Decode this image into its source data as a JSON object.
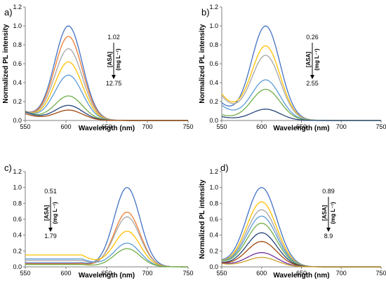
{
  "chart_data": [
    {
      "type": "line",
      "panel_label": "a)",
      "xlabel": "Wavelength (nm)",
      "ylabel": "Normalized PL intensity",
      "xlim": [
        550,
        750
      ],
      "ylim": [
        0,
        1.2
      ],
      "xticks": [
        "550",
        "600",
        "650",
        "700",
        "750"
      ],
      "yticks": [
        "0.0",
        "0.2",
        "0.4",
        "0.6",
        "0.8",
        "1.0",
        "1.2"
      ],
      "grid": false,
      "legend": "none",
      "annotation": {
        "top": "1.02",
        "bottom": "12.75",
        "label_main": "[ASA]",
        "label_unit": "(mg L⁻¹)"
      },
      "peak_x": 603,
      "width": 17,
      "baseline": 0.05,
      "series": [
        {
          "color": "#4472C4",
          "peak": 1.0,
          "wing": 0.1
        },
        {
          "color": "#ED7D31",
          "peak": 0.89,
          "wing": 0.1
        },
        {
          "color": "#A5A5A5",
          "peak": 0.76,
          "wing": 0.1
        },
        {
          "color": "#FFC000",
          "peak": 0.62,
          "wing": 0.1
        },
        {
          "color": "#5B9BD5",
          "peak": 0.48,
          "wing": 0.1
        },
        {
          "color": "#70AD47",
          "peak": 0.26,
          "wing": 0.1
        },
        {
          "color": "#264478",
          "peak": 0.16,
          "wing": 0.1
        },
        {
          "color": "#9E480E",
          "peak": 0.11,
          "wing": 0.08
        }
      ]
    },
    {
      "type": "line",
      "panel_label": "b)",
      "xlabel": "Wavelength (nm)",
      "ylabel": "Normalized PL intensity",
      "xlim": [
        550,
        750
      ],
      "ylim": [
        0,
        1.2
      ],
      "xticks": [
        "550",
        "600",
        "650",
        "700",
        "750"
      ],
      "yticks": [
        "0.0",
        "0.2",
        "0.4",
        "0.6",
        "0.8",
        "1.0",
        "1.2"
      ],
      "grid": false,
      "legend": "none",
      "annotation": {
        "top": "0.26",
        "bottom": "2.55",
        "label_main": "[ASA]",
        "label_unit": "(mg L⁻¹)"
      },
      "peak_x": 605,
      "width": 18,
      "baseline": 0.03,
      "series": [
        {
          "color": "#4472C4",
          "peak": 1.0,
          "wing": 0.18
        },
        {
          "color": "#FFC000",
          "peak": 0.79,
          "wing": 0.28
        },
        {
          "color": "#A5A5A5",
          "peak": 0.69,
          "wing": 0.26
        },
        {
          "color": "#5B9BD5",
          "peak": 0.43,
          "wing": 0.16
        },
        {
          "color": "#70AD47",
          "peak": 0.33,
          "wing": 0.06
        },
        {
          "color": "#264478",
          "peak": 0.12,
          "wing": 0.04
        }
      ]
    },
    {
      "type": "line",
      "panel_label": "c)",
      "xlabel": "Wavelength (nm)",
      "ylabel": "",
      "xlim": [
        550,
        750
      ],
      "ylim": [
        0,
        1.2
      ],
      "xticks": [
        "550",
        "600",
        "650",
        "700",
        "750"
      ],
      "yticks": [
        "0.0",
        "0.2",
        "0.4",
        "0.6",
        "0.8",
        "1.0",
        "1.2"
      ],
      "grid": false,
      "legend": "none",
      "annotation": {
        "top": "0.51",
        "bottom": "1.79",
        "label_main": "[ASA]",
        "label_unit": "(mg L⁻¹)"
      },
      "peak_x": 675,
      "width": 16,
      "baseline": 0.0,
      "series": [
        {
          "color": "#4472C4",
          "peak": 1.0,
          "wing": 0.05
        },
        {
          "color": "#ED7D31",
          "peak": 0.69,
          "wing": 0.04
        },
        {
          "color": "#A5A5A5",
          "peak": 0.63,
          "wing": 0.08
        },
        {
          "color": "#FFC000",
          "peak": 0.45,
          "wing": 0.15
        },
        {
          "color": "#5B9BD5",
          "peak": 0.3,
          "wing": 0.1
        },
        {
          "color": "#70AD47",
          "peak": 0.23,
          "wing": 0.03
        }
      ]
    },
    {
      "type": "line",
      "panel_label": "d)",
      "xlabel": "Wavelength (nm)",
      "ylabel": "Normalized PL intensity",
      "xlim": [
        550,
        750
      ],
      "ylim": [
        0,
        1.2
      ],
      "xticks": [
        "550",
        "600",
        "650",
        "700",
        "750"
      ],
      "yticks": [
        "0.0",
        "0.2",
        "0.4",
        "0.6",
        "0.8",
        "1.0",
        "1.2"
      ],
      "grid": false,
      "legend": "none",
      "annotation": {
        "top": "0.89",
        "bottom": "8.9",
        "label_main": "[ASA]",
        "label_unit": "(mg L⁻¹)"
      },
      "peak_x": 600,
      "width": 19,
      "baseline": 0.02,
      "series": [
        {
          "color": "#4472C4",
          "peak": 1.0,
          "wing": 0.08
        },
        {
          "color": "#FFC000",
          "peak": 0.82,
          "wing": 0.08
        },
        {
          "color": "#A5A5A5",
          "peak": 0.72,
          "wing": 0.08
        },
        {
          "color": "#5B9BD5",
          "peak": 0.64,
          "wing": 0.08
        },
        {
          "color": "#70AD47",
          "peak": 0.55,
          "wing": 0.08
        },
        {
          "color": "#264478",
          "peak": 0.43,
          "wing": 0.06
        },
        {
          "color": "#9E480E",
          "peak": 0.32,
          "wing": 0.06
        },
        {
          "color": "#7030A0",
          "peak": 0.18,
          "wing": 0.06
        },
        {
          "color": "#C9A227",
          "peak": 0.12,
          "wing": 0.05
        }
      ]
    }
  ]
}
